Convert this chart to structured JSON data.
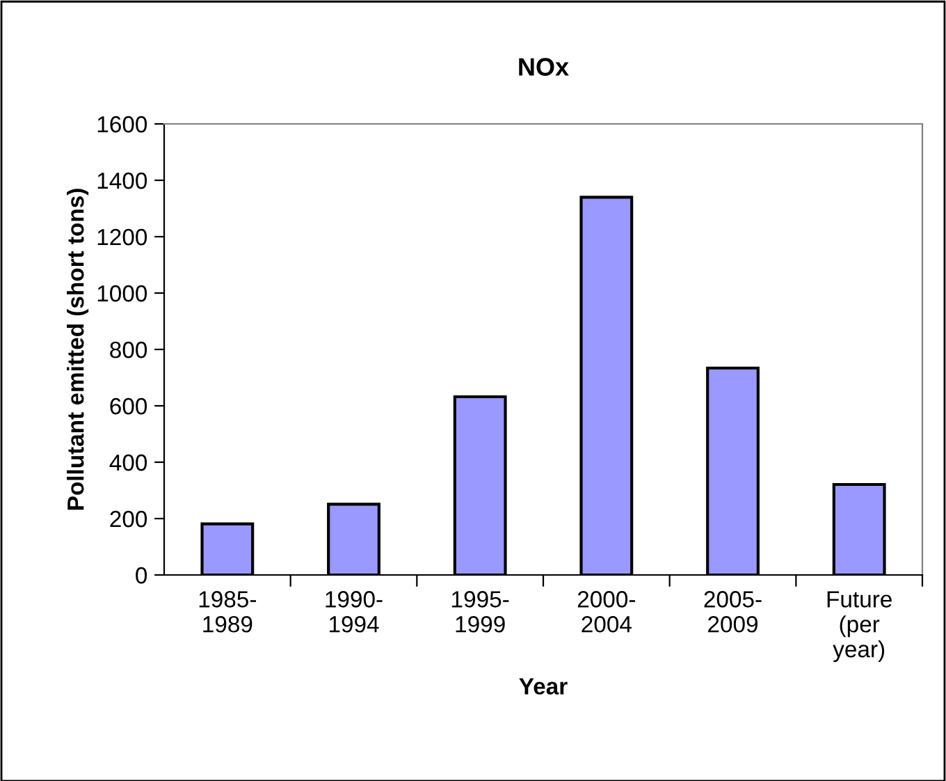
{
  "chart_data": {
    "type": "bar",
    "title": "NOx",
    "xlabel": "Year",
    "ylabel": "Pollutant emitted (short tons)",
    "categories": [
      "1985-\n1989",
      "1990-\n1994",
      "1995-\n1999",
      "2000-\n2004",
      "2005-\n2009",
      "Future\n(per\nyear)"
    ],
    "values": [
      181,
      251,
      632,
      1340,
      734,
      321
    ],
    "color": "#9999ff",
    "ylim": [
      0,
      1600
    ],
    "yticks": [
      0,
      200,
      400,
      600,
      800,
      1000,
      1200,
      1400,
      1600
    ],
    "grid": false,
    "legend": false
  }
}
